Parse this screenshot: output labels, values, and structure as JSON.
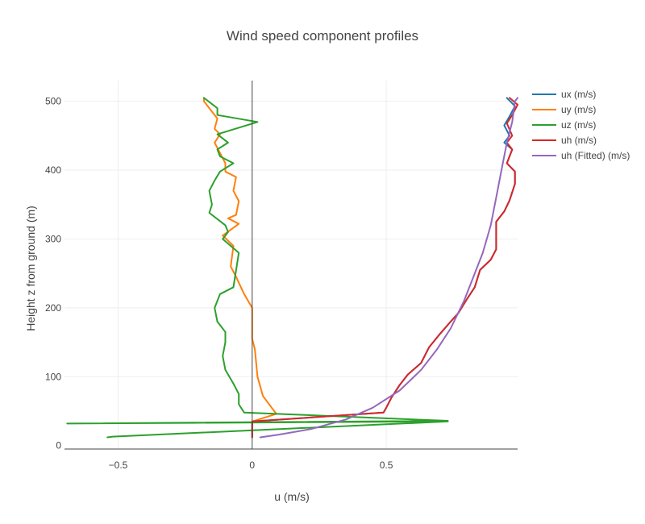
{
  "chart_data": {
    "type": "line",
    "title": "Wind speed component profiles",
    "xlabel": "u (m/s)",
    "ylabel": "Height z from ground (m)",
    "xlim": [
      -0.7,
      0.99
    ],
    "ylim": [
      -5,
      530
    ],
    "x_ticks": [
      -0.5,
      0,
      0.5
    ],
    "x_tick_labels": [
      "−0.5",
      "0",
      "0.5"
    ],
    "y_ticks": [
      0,
      100,
      200,
      300,
      400,
      500
    ],
    "y_tick_labels": [
      "0",
      "100",
      "200",
      "300",
      "400",
      "500"
    ],
    "grid": true,
    "legend_position": "top-right",
    "series": [
      {
        "name": "ux (m/s)",
        "color": "#1f77b4",
        "points": [
          [
            0,
            12
          ],
          [
            0,
            35
          ],
          [
            0.49,
            48
          ],
          [
            0.5,
            55
          ],
          [
            0.52,
            70
          ],
          [
            0.55,
            88
          ],
          [
            0.58,
            103
          ],
          [
            0.63,
            120
          ],
          [
            0.66,
            143
          ],
          [
            0.7,
            162
          ],
          [
            0.74,
            180
          ],
          [
            0.77,
            193
          ],
          [
            0.8,
            212
          ],
          [
            0.83,
            230
          ],
          [
            0.85,
            255
          ],
          [
            0.89,
            270
          ],
          [
            0.91,
            285
          ],
          [
            0.91,
            305
          ],
          [
            0.91,
            325
          ],
          [
            0.94,
            340
          ],
          [
            0.96,
            356
          ],
          [
            0.98,
            380
          ],
          [
            0.98,
            398
          ],
          [
            0.95,
            410
          ],
          [
            0.97,
            430
          ],
          [
            0.94,
            440
          ],
          [
            0.96,
            450
          ],
          [
            0.94,
            465
          ],
          [
            0.96,
            478
          ],
          [
            0.98,
            493
          ],
          [
            0.95,
            505
          ]
        ]
      },
      {
        "name": "uy (m/s)",
        "color": "#ff7f0e",
        "points": [
          [
            0,
            12
          ],
          [
            0,
            35
          ],
          [
            0.09,
            46
          ],
          [
            0.04,
            72
          ],
          [
            0.02,
            100
          ],
          [
            0.01,
            140
          ],
          [
            0,
            155
          ],
          [
            0,
            200
          ],
          [
            -0.03,
            220
          ],
          [
            -0.06,
            245
          ],
          [
            -0.08,
            260
          ],
          [
            -0.07,
            290
          ],
          [
            -0.11,
            305
          ],
          [
            -0.05,
            322
          ],
          [
            -0.09,
            330
          ],
          [
            -0.06,
            335
          ],
          [
            -0.05,
            355
          ],
          [
            -0.07,
            370
          ],
          [
            -0.06,
            390
          ],
          [
            -0.1,
            398
          ],
          [
            -0.1,
            410
          ],
          [
            -0.14,
            440
          ],
          [
            -0.12,
            452
          ],
          [
            -0.14,
            460
          ],
          [
            -0.13,
            475
          ],
          [
            -0.16,
            490
          ],
          [
            -0.18,
            500
          ],
          [
            -0.18,
            505
          ]
        ]
      },
      {
        "name": "uz (m/s)",
        "color": "#2ca02c",
        "points": [
          [
            -0.54,
            12
          ],
          [
            -0.52,
            13
          ],
          [
            0.73,
            35
          ],
          [
            -0.69,
            32
          ],
          [
            0.73,
            36
          ],
          [
            -0.03,
            48
          ],
          [
            -0.05,
            60
          ],
          [
            -0.05,
            75
          ],
          [
            -0.07,
            90
          ],
          [
            -0.1,
            110
          ],
          [
            -0.11,
            130
          ],
          [
            -0.1,
            150
          ],
          [
            -0.1,
            165
          ],
          [
            -0.13,
            180
          ],
          [
            -0.14,
            200
          ],
          [
            -0.12,
            220
          ],
          [
            -0.07,
            230
          ],
          [
            -0.05,
            280
          ],
          [
            -0.08,
            290
          ],
          [
            -0.11,
            300
          ],
          [
            -0.09,
            310
          ],
          [
            -0.1,
            320
          ],
          [
            -0.16,
            338
          ],
          [
            -0.15,
            350
          ],
          [
            -0.16,
            370
          ],
          [
            -0.14,
            385
          ],
          [
            -0.12,
            398
          ],
          [
            -0.07,
            410
          ],
          [
            -0.12,
            420
          ],
          [
            -0.13,
            430
          ],
          [
            -0.09,
            440
          ],
          [
            -0.13,
            452
          ],
          [
            0.02,
            470
          ],
          [
            -0.13,
            480
          ],
          [
            -0.13,
            490
          ],
          [
            -0.18,
            505
          ]
        ]
      },
      {
        "name": "uh (m/s)",
        "color": "#d62728",
        "points": [
          [
            0,
            12
          ],
          [
            0,
            35
          ],
          [
            0.49,
            48
          ],
          [
            0.5,
            55
          ],
          [
            0.52,
            70
          ],
          [
            0.55,
            88
          ],
          [
            0.58,
            103
          ],
          [
            0.63,
            120
          ],
          [
            0.66,
            143
          ],
          [
            0.7,
            162
          ],
          [
            0.74,
            180
          ],
          [
            0.77,
            193
          ],
          [
            0.8,
            212
          ],
          [
            0.83,
            230
          ],
          [
            0.85,
            255
          ],
          [
            0.89,
            270
          ],
          [
            0.91,
            285
          ],
          [
            0.91,
            305
          ],
          [
            0.91,
            325
          ],
          [
            0.94,
            340
          ],
          [
            0.96,
            356
          ],
          [
            0.98,
            380
          ],
          [
            0.98,
            398
          ],
          [
            0.95,
            410
          ],
          [
            0.97,
            430
          ],
          [
            0.95,
            440
          ],
          [
            0.97,
            450
          ],
          [
            0.95,
            468
          ],
          [
            0.97,
            480
          ],
          [
            0.99,
            495
          ],
          [
            0.96,
            505
          ]
        ]
      },
      {
        "name": "uh (Fitted) (m/s)",
        "color": "#9467bd",
        "points": [
          [
            0.03,
            12
          ],
          [
            0.1,
            16
          ],
          [
            0.22,
            24
          ],
          [
            0.35,
            38
          ],
          [
            0.45,
            55
          ],
          [
            0.55,
            80
          ],
          [
            0.63,
            110
          ],
          [
            0.69,
            140
          ],
          [
            0.74,
            170
          ],
          [
            0.79,
            210
          ],
          [
            0.82,
            240
          ],
          [
            0.86,
            280
          ],
          [
            0.89,
            320
          ],
          [
            0.91,
            360
          ],
          [
            0.93,
            400
          ],
          [
            0.95,
            440
          ],
          [
            0.97,
            470
          ],
          [
            0.98,
            500
          ],
          [
            0.99,
            505
          ]
        ]
      }
    ]
  }
}
